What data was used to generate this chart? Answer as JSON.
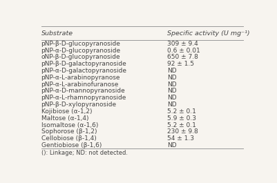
{
  "col1_header": "Substrate",
  "col2_header": "Specific activity (U mg⁻¹)",
  "rows": [
    [
      "pNP-β-D-glucopyranoside",
      "309 ± 9.4"
    ],
    [
      "pNP-α-D-glucopyranoside",
      "0.6 ± 0.01"
    ],
    [
      "oNP-β-D-glucopyranoside",
      "650 ± 7.8"
    ],
    [
      "pNP-β-D-galactopyranoside",
      "92 ± 1.5"
    ],
    [
      "pNP-α-D-galactopyranoside",
      "ND"
    ],
    [
      "pNP-α-L-arabinopyranose",
      "ND"
    ],
    [
      "pNP-α-L-arabinofuranose",
      "ND"
    ],
    [
      "pNP-α-D-mannopyranoside",
      "ND"
    ],
    [
      "pNP-α-L-rhamnopyranoside",
      "ND"
    ],
    [
      "pNP-β-D-xylopyranoside",
      "ND"
    ],
    [
      "Kojibiose (α-1,2)",
      "5.2 ± 0.1"
    ],
    [
      "Maltose (α-1,4)",
      "5.9 ± 0.3"
    ],
    [
      "Isomaltose (α-1,6)",
      "5.2 ± 0.1"
    ],
    [
      "Sophorose (β-1,2)",
      "230 ± 9.8"
    ],
    [
      "Cellobiose (β-1,4)",
      "54 ± 1.3"
    ],
    [
      "Gentiobiose (β-1,6)",
      "ND"
    ]
  ],
  "footnote": "(): Linkage; ND: not detected.",
  "bg_color": "#f7f4ef",
  "text_color": "#444444",
  "header_color": "#444444",
  "line_color": "#999999",
  "font_size": 6.5,
  "header_font_size": 6.8
}
